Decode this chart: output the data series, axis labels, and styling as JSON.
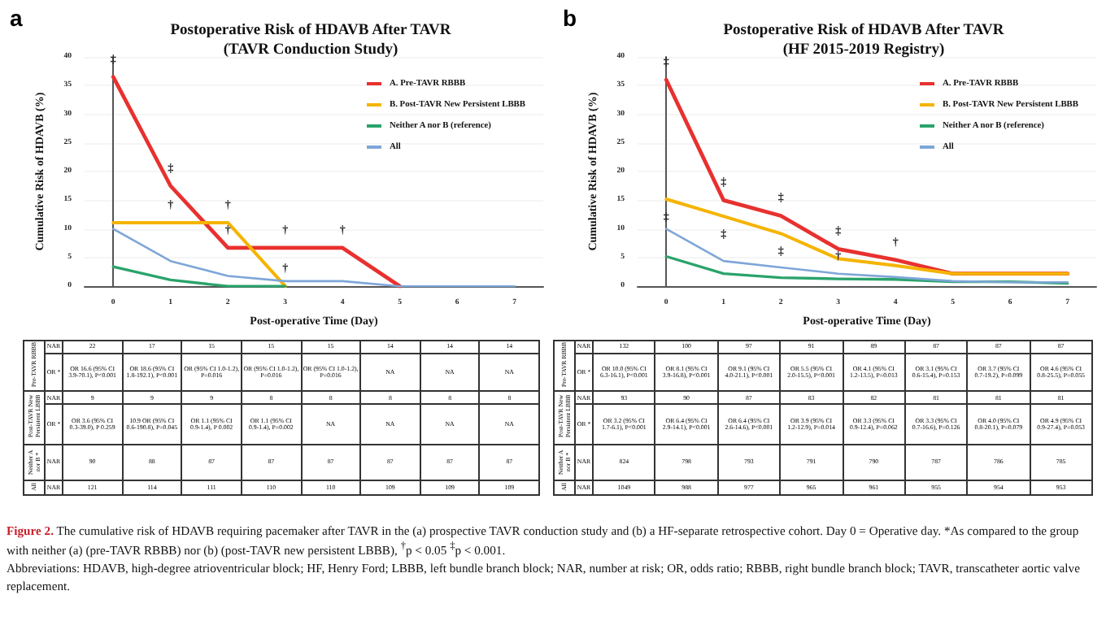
{
  "chart_data": [
    {
      "type": "line",
      "title": "Postoperative Risk of HDAVB After TAVR\n(TAVR Conduction Study)",
      "xlabel": "Post-operative Time (Day)",
      "ylabel": "Cumulative Risk of HDAVB (%)",
      "x": [
        0,
        1,
        2,
        3,
        4,
        5,
        6,
        7
      ],
      "xlim": [
        -0.5,
        7.5
      ],
      "xticks": [
        0,
        1,
        2,
        3,
        4,
        5,
        6,
        7
      ],
      "ylim": [
        0,
        40
      ],
      "yticks": [
        0,
        5,
        10,
        15,
        20,
        25,
        30,
        35,
        40
      ],
      "grid": "y",
      "legend": "top right",
      "series": [
        {
          "name": "A. Pre-TAVR RBBB",
          "color": "#e8312f",
          "values": [
            36.5,
            17.5,
            6.7,
            6.7,
            6.7,
            0,
            null,
            null
          ]
        },
        {
          "name": "B. Post-TAVR New Persistent LBBB",
          "color": "#f5b400",
          "values": [
            11.1,
            11.1,
            11.1,
            0,
            null,
            null,
            null,
            null
          ]
        },
        {
          "name": "Neither A nor B (reference)",
          "color": "#2aa36b",
          "values": [
            3.4,
            1.1,
            0,
            0,
            null,
            null,
            null,
            null
          ]
        },
        {
          "name": "All",
          "color": "#7ea6d8",
          "values": [
            10,
            4.4,
            1.8,
            0.9,
            0.9,
            0,
            0,
            0
          ]
        }
      ],
      "annotations": [
        "a",
        {
          "text": "‡",
          "x": 0,
          "y": 36.5
        },
        {
          "text": "‡",
          "x": 1,
          "y": 17.5
        },
        {
          "text": "†",
          "x": 1,
          "y": 11.1
        },
        {
          "text": "†",
          "x": 2,
          "y": 11.1
        },
        {
          "text": "†",
          "x": 2,
          "y": 6.7
        },
        {
          "text": "†",
          "x": 3,
          "y": 6.7
        },
        {
          "text": "†",
          "x": 4,
          "y": 6.7
        },
        {
          "text": "†",
          "x": 3,
          "y": 0
        },
        "Pre-TAVR RBBB",
        "NAR",
        "22",
        "17",
        "15",
        "15",
        "15",
        "14",
        "14",
        "14",
        "OR *",
        "OR 16.6 (95% CI 3.9-70.1), P<0.001",
        "OR 18.6 (95% CI 1.8-192.1), P<0.001",
        "OR (95% CI 1.0-1.2), P=0.016",
        "OR (95% CI 1.0-1.2), P=0.016",
        "OR (95% CI 1.0-1.2), P=0.016",
        "NA",
        "NA",
        "NA",
        "Post-TAVR New Persistent LBBB",
        "NAR",
        "9",
        "9",
        "9",
        "8",
        "8",
        "8",
        "8",
        "8",
        "OR *",
        "OR 3.6 (95% CI 0.3-39.0), P 0.259",
        "10.9 OR (95% CI 0.6-190.8), P=0.045",
        "OR 1.1 (95% CI 0.9-1.4), P 0.002",
        "OR 1.1 (95% CI 0.9-1.4), P=0.002",
        "NA",
        "NA",
        "NA",
        "NA",
        "Neither A nor B *",
        "NAR",
        "90",
        "88",
        "87",
        "87",
        "87",
        "87",
        "87",
        "87",
        "All",
        "NAR",
        "121",
        "114",
        "111",
        "110",
        "110",
        "109",
        "109",
        "109"
      ]
    },
    {
      "type": "line",
      "title": "Postoperative Risk of HDAVB After TAVR\n(HF 2015-2019 Registry)",
      "xlabel": "Post-operative Time (Day)",
      "ylabel": "Cumulative Risk of HDAVB (%)",
      "x": [
        0,
        1,
        2,
        3,
        4,
        5,
        6,
        7
      ],
      "xlim": [
        -0.5,
        7.5
      ],
      "xticks": [
        0,
        1,
        2,
        3,
        4,
        5,
        6,
        7
      ],
      "ylim": [
        0,
        40
      ],
      "yticks": [
        0,
        5,
        10,
        15,
        20,
        25,
        30,
        35,
        40
      ],
      "grid": "y",
      "legend": "top right",
      "series": [
        {
          "name": "A. Pre-TAVR RBBB",
          "color": "#e8312f",
          "values": [
            36,
            15,
            12.3,
            6.5,
            4.6,
            2.2,
            2.2,
            2.2
          ]
        },
        {
          "name": "B. Post-TAVR New Persistent LBBB",
          "color": "#f5b400",
          "values": [
            15.2,
            12.2,
            9.2,
            4.8,
            3.6,
            2.2,
            2.2,
            2.2
          ]
        },
        {
          "name": "Neither A nor B (reference)",
          "color": "#2aa36b",
          "values": [
            5.2,
            2.2,
            1.5,
            1.3,
            1.2,
            0.8,
            0.8,
            0.5
          ]
        },
        {
          "name": "All",
          "color": "#7ea6d8",
          "values": [
            10,
            4.4,
            3.3,
            2.2,
            1.6,
            0.9,
            0.7,
            0.7
          ]
        }
      ],
      "annotations": [
        "b",
        {
          "text": "‡",
          "x": 0,
          "y": 36
        },
        {
          "text": "‡",
          "x": 1,
          "y": 15
        },
        {
          "text": "‡",
          "x": 2,
          "y": 12.3
        },
        {
          "text": "‡",
          "x": 3,
          "y": 6.5
        },
        {
          "text": "†",
          "x": 4,
          "y": 4.6
        },
        {
          "text": "‡",
          "x": 0,
          "y": 15.2
        },
        {
          "text": "‡",
          "x": 1,
          "y": 12.2
        },
        {
          "text": "‡",
          "x": 2,
          "y": 9.2
        },
        {
          "text": "†",
          "x": 3,
          "y": 2.2
        },
        "Pre-TAVR RBBB",
        "NAR",
        "132",
        "100",
        "97",
        "91",
        "89",
        "87",
        "87",
        "87",
        "OR *",
        "OR 10.0 (95% CI 6.3-16.1), P<0.001",
        "OR 8.1 (95% CI 3.9-16.8), P<0.001",
        "OR 9.1 (95% CI 4.0-21.1), P<0.001",
        "OR 5.5 (95% CI 2.0-15.5), P<0.001",
        "OR 4.1 (95% CI 1.2-13.5), P=0.013",
        "OR 3.1 (95% CI 0.6-15.4), P=0.153",
        "OR 3.7 (95% CI 0.7-19.2), P=0.099",
        "OR 4.6 (95% CI 0.8-25.5), P=0.055",
        "Post-TAVR New Persistent LBBB",
        "NAR",
        "93",
        "90",
        "87",
        "83",
        "82",
        "81",
        "81",
        "81",
        "OR *",
        "OR 3.2 (95% CI 1.7-6.1), P<0.001",
        "OR 6.4 (95% CI 2.9-14.1), P<0.001",
        "OR 6.4 (95% CI 2.6-14.6), P<0.001",
        "OR 3.9 (95% CI 1.2-12.9), P=0.014",
        "OR 3.3 (95% CI 0.9-12.4), P=0.062",
        "OR 3.3 (95% CI 0.7-16.6), P=0.126",
        "OR 4.0 (95% CI 0.8-20.1), P=0.079",
        "OR 4.9 (95% CI 0.9-27.4), P=0.053",
        "Neither A nor B *",
        "NAR",
        "824",
        "798",
        "793",
        "791",
        "790",
        "787",
        "786",
        "785",
        "All",
        "NAR",
        "1049",
        "988",
        "977",
        "965",
        "961",
        "955",
        "954",
        "953"
      ]
    },
    {
      "type": "other",
      "annotations": [
        "Figure 2.",
        "The cumulative risk of HDAVB requiring pacemaker after TAVR in the (a) prospective TAVR conduction study and (b) a HF-separate retrospective cohort. Day 0 = Operative day. *As compared to the group with neither (a) (pre-TAVR RBBB) nor (b) (post-TAVR new persistent LBBB), $^{†}$p < 0.05 $^{‡}$p < 0.001.",
        "Abbreviations: HDAVB, high-degree atrioventricular block; HF, Henry Ford; LBBB, left bundle branch block; NAR, number at risk; OR, odds ratio; RBBB, right bundle branch block; TAVR, transcatheter aortic valve replacement."
      ]
    }
  ]
}
